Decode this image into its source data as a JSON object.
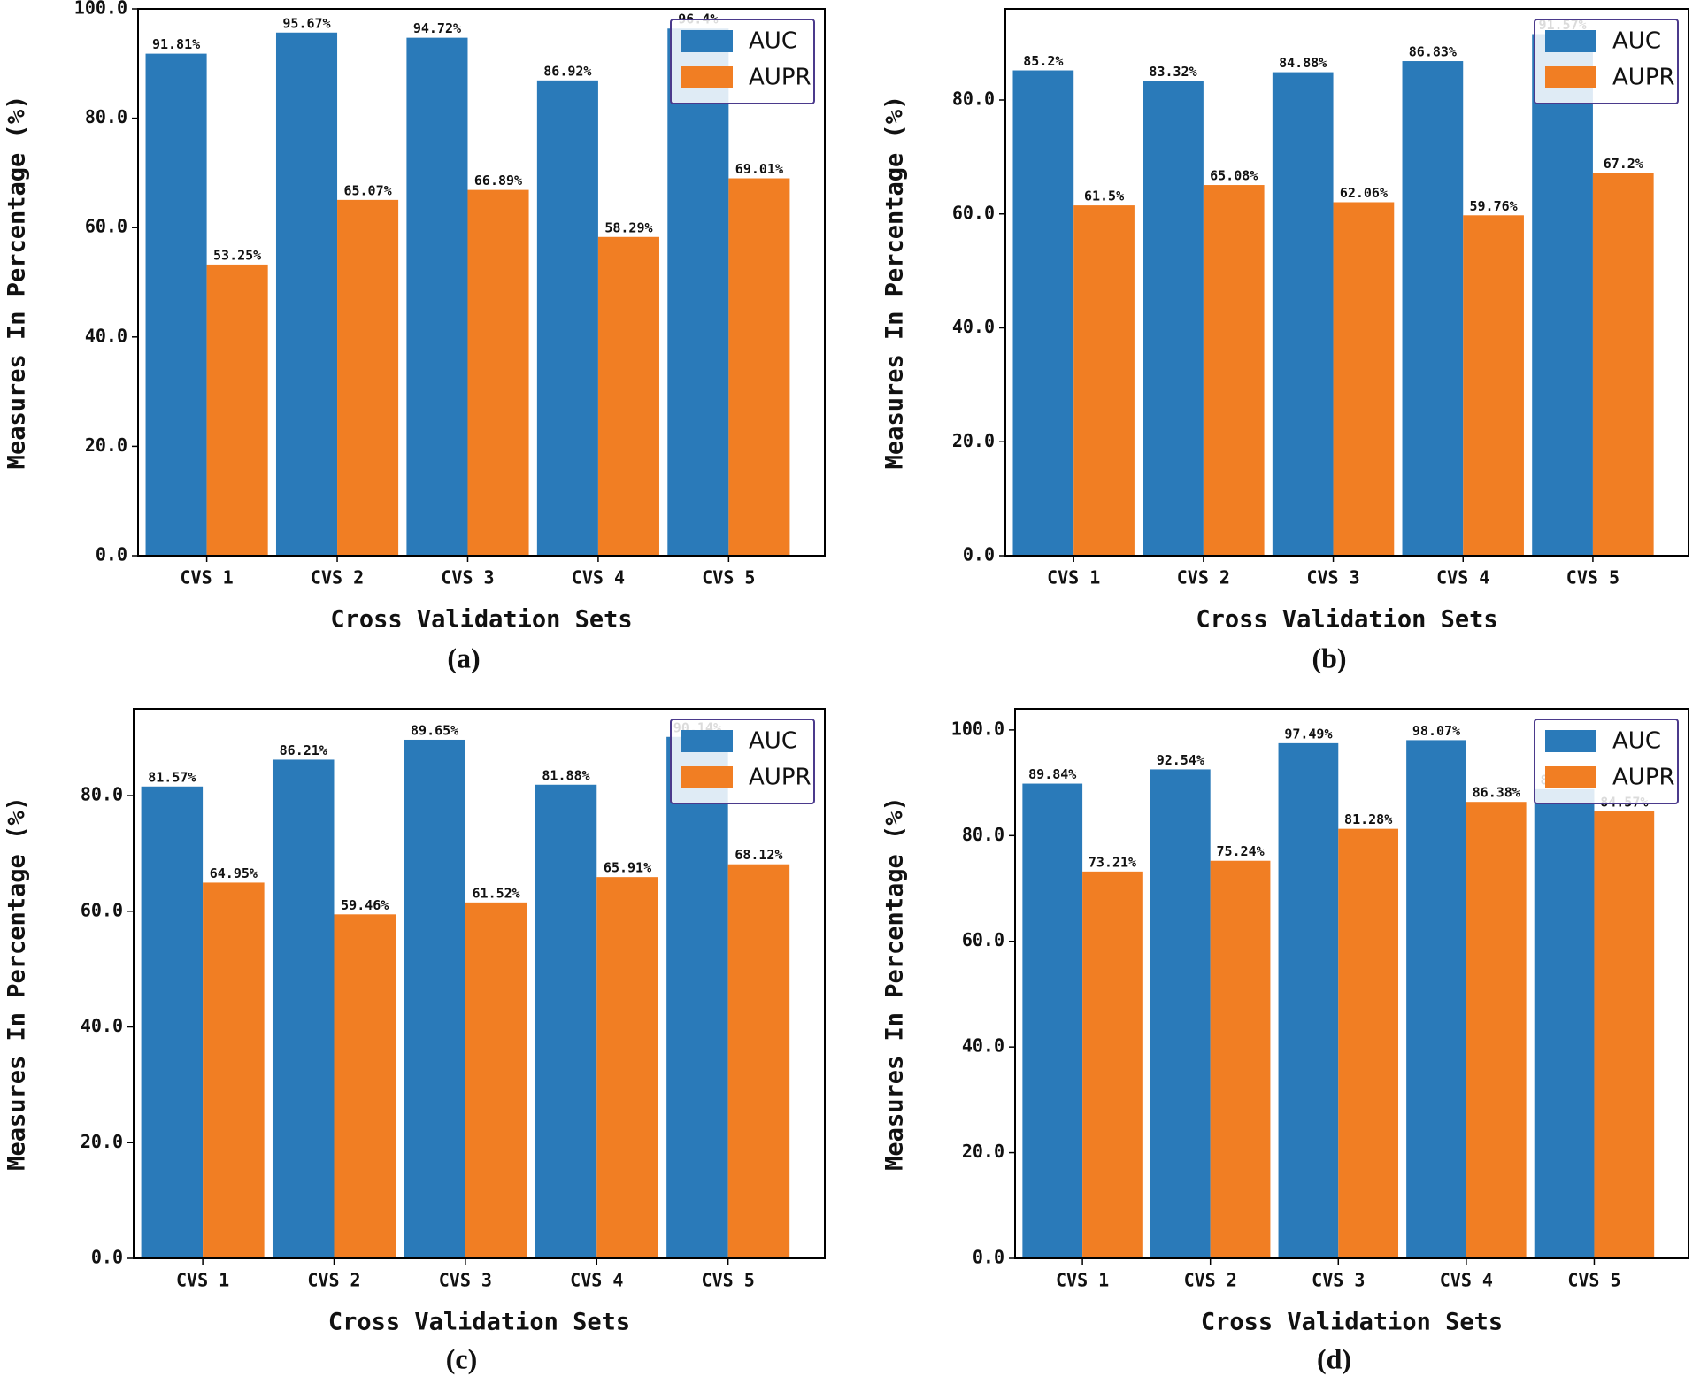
{
  "chart_data": [
    {
      "type": "bar",
      "title": "(a)",
      "x_label": "Cross Validation Sets",
      "y_label": "Measures In Percentage (%)",
      "categories": [
        "CVS 1",
        "CVS 2",
        "CVS 3",
        "CVS 4",
        "CVS 5"
      ],
      "series": [
        {
          "name": "AUC",
          "color": "#2a7ab9",
          "values": [
            91.81,
            95.67,
            94.72,
            86.92,
            96.4
          ],
          "value_labels": [
            "91.81%",
            "95.67%",
            "94.72%",
            "86.92%",
            "96.4%"
          ]
        },
        {
          "name": "AUPR",
          "color": "#f17e23",
          "values": [
            53.25,
            65.07,
            66.89,
            58.29,
            69.01
          ],
          "value_labels": [
            "53.25%",
            "65.07%",
            "66.89%",
            "58.29%",
            "69.01%"
          ]
        }
      ],
      "ylim": [
        0,
        100
      ],
      "yticks": [
        {
          "value": 0,
          "label": "0.0"
        },
        {
          "value": 20,
          "label": "20.0"
        },
        {
          "value": 40,
          "label": "40.0"
        },
        {
          "value": 60,
          "label": "60.0"
        },
        {
          "value": 80,
          "label": "80.0"
        },
        {
          "value": 100,
          "label": "100.0"
        }
      ],
      "legend": "upper right"
    },
    {
      "type": "bar",
      "title": "(b)",
      "x_label": "Cross Validation Sets",
      "y_label": "Measures In Percentage (%)",
      "categories": [
        "CVS 1",
        "CVS 2",
        "CVS 3",
        "CVS 4",
        "CVS 5"
      ],
      "series": [
        {
          "name": "AUC",
          "color": "#2a7ab9",
          "values": [
            85.2,
            83.32,
            84.88,
            86.83,
            91.57
          ],
          "value_labels": [
            "85.2%",
            "83.32%",
            "84.88%",
            "86.83%",
            "91.57%"
          ]
        },
        {
          "name": "AUPR",
          "color": "#f17e23",
          "values": [
            61.5,
            65.08,
            62.06,
            59.76,
            67.2
          ],
          "value_labels": [
            "61.5%",
            "65.08%",
            "62.06%",
            "59.76%",
            "67.2%"
          ]
        }
      ],
      "ylim": [
        0,
        96
      ],
      "yticks": [
        {
          "value": 0,
          "label": "0.0"
        },
        {
          "value": 20,
          "label": "20.0"
        },
        {
          "value": 40,
          "label": "40.0"
        },
        {
          "value": 60,
          "label": "60.0"
        },
        {
          "value": 80,
          "label": "80.0"
        }
      ],
      "legend": "upper right"
    },
    {
      "type": "bar",
      "title": "(c)",
      "x_label": "Cross Validation Sets",
      "y_label": "Measures In Percentage (%)",
      "categories": [
        "CVS 1",
        "CVS 2",
        "CVS 3",
        "CVS 4",
        "CVS 5"
      ],
      "series": [
        {
          "name": "AUC",
          "color": "#2a7ab9",
          "values": [
            81.57,
            86.21,
            89.65,
            81.88,
            90.14
          ],
          "value_labels": [
            "81.57%",
            "86.21%",
            "89.65%",
            "81.88%",
            "90.14%"
          ]
        },
        {
          "name": "AUPR",
          "color": "#f17e23",
          "values": [
            64.95,
            59.46,
            61.52,
            65.91,
            68.12
          ],
          "value_labels": [
            "64.95%",
            "59.46%",
            "61.52%",
            "65.91%",
            "68.12%"
          ]
        }
      ],
      "ylim": [
        0,
        95
      ],
      "yticks": [
        {
          "value": 0,
          "label": "0.0"
        },
        {
          "value": 20,
          "label": "20.0"
        },
        {
          "value": 40,
          "label": "40.0"
        },
        {
          "value": 60,
          "label": "60.0"
        },
        {
          "value": 80,
          "label": "80.0"
        }
      ],
      "legend": "upper right"
    },
    {
      "type": "bar",
      "title": "(d)",
      "x_label": "Cross Validation Sets",
      "y_label": "Measures In Percentage (%)",
      "categories": [
        "CVS 1",
        "CVS 2",
        "CVS 3",
        "CVS 4",
        "CVS 5"
      ],
      "series": [
        {
          "name": "AUC",
          "color": "#2a7ab9",
          "values": [
            89.84,
            92.54,
            97.49,
            98.07,
            88.79
          ],
          "value_labels": [
            "89.84%",
            "92.54%",
            "97.49%",
            "98.07%",
            "88.79%"
          ]
        },
        {
          "name": "AUPR",
          "color": "#f17e23",
          "values": [
            73.21,
            75.24,
            81.28,
            86.38,
            84.57
          ],
          "value_labels": [
            "73.21%",
            "75.24%",
            "81.28%",
            "86.38%",
            "84.57%"
          ]
        }
      ],
      "ylim": [
        0,
        104
      ],
      "yticks": [
        {
          "value": 0,
          "label": "0.0"
        },
        {
          "value": 20,
          "label": "20.0"
        },
        {
          "value": 40,
          "label": "40.0"
        },
        {
          "value": 60,
          "label": "60.0"
        },
        {
          "value": 80,
          "label": "80.0"
        },
        {
          "value": 100,
          "label": "100.0"
        }
      ],
      "legend": "upper right"
    }
  ]
}
